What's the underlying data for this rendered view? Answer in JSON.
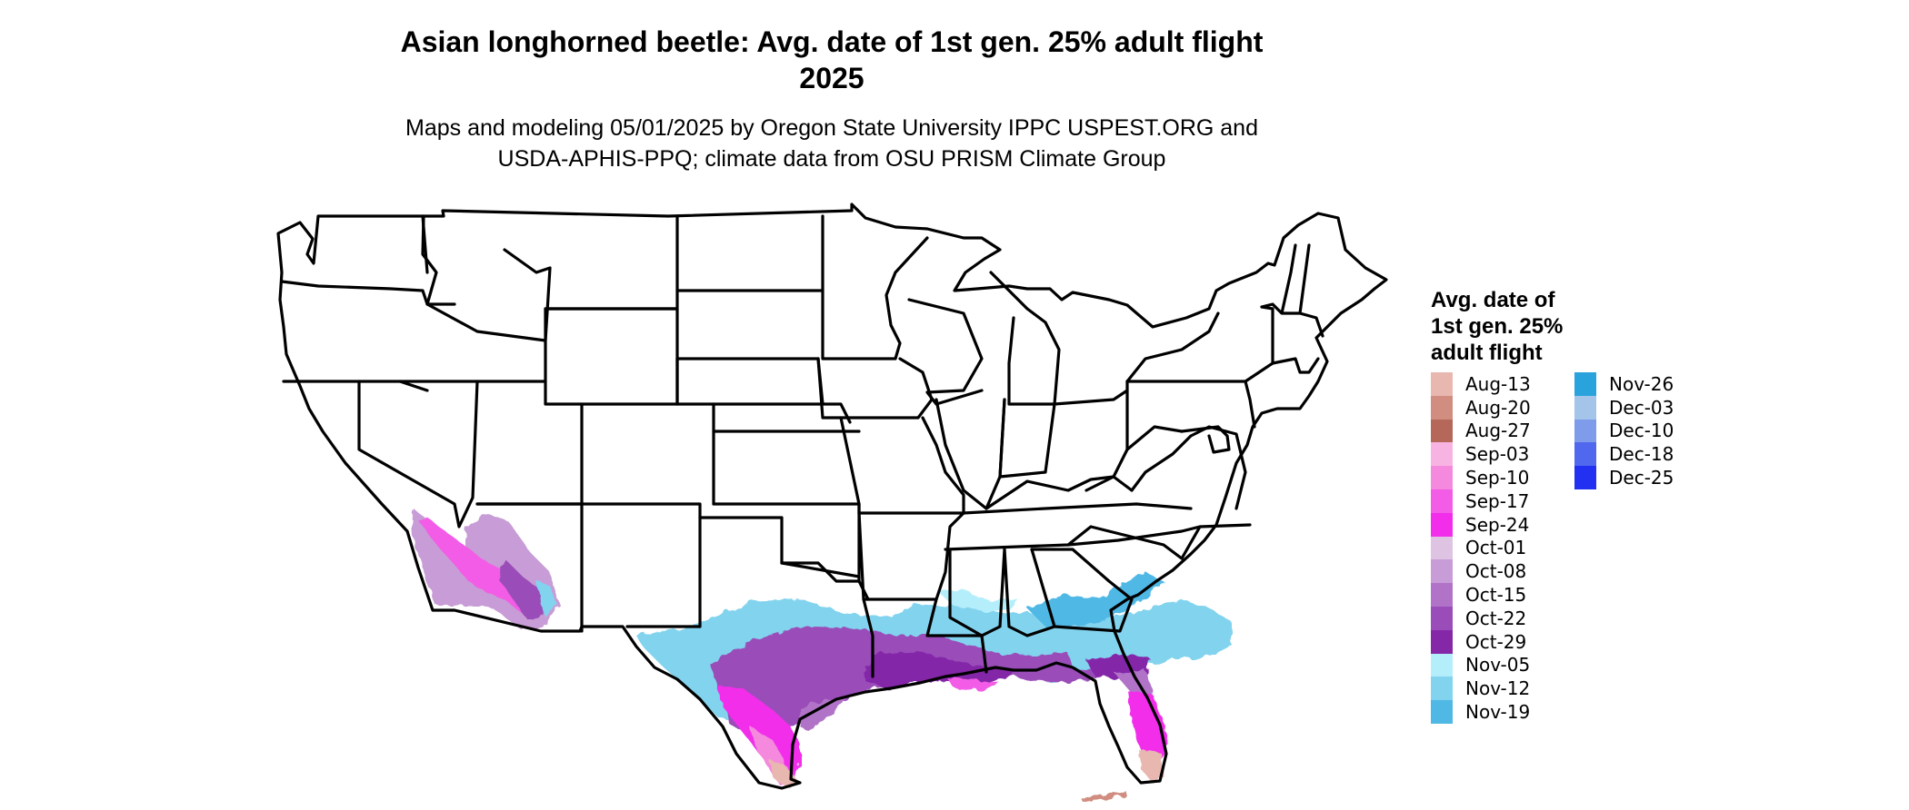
{
  "title": "Asian longhorned beetle: Avg. date of 1st gen. 25% adult flight\n2025",
  "title_line1": "Asian longhorned beetle: Avg. date of 1st gen. 25% adult flight",
  "title_line2": "2025",
  "subtitle_line1": "Maps and modeling 05/01/2025 by Oregon State University IPPC USPEST.ORG and",
  "subtitle_line2": "USDA-APHIS-PPQ; climate data from OSU PRISM Climate Group",
  "legend": {
    "title": "Avg. date of\n1st gen. 25%\nadult flight",
    "entries": [
      {
        "label": "Aug-13",
        "color": "#E8B8B0"
      },
      {
        "label": "Aug-20",
        "color": "#D08D80"
      },
      {
        "label": "Aug-27",
        "color": "#B5675A"
      },
      {
        "label": "Sep-03",
        "color": "#F7B3E2"
      },
      {
        "label": "Sep-10",
        "color": "#F489DD"
      },
      {
        "label": "Sep-17",
        "color": "#F35CE6"
      },
      {
        "label": "Sep-24",
        "color": "#F22EEB"
      },
      {
        "label": "Oct-01",
        "color": "#DEC3E3"
      },
      {
        "label": "Oct-08",
        "color": "#C89CD6"
      },
      {
        "label": "Oct-15",
        "color": "#B173C8"
      },
      {
        "label": "Oct-22",
        "color": "#9A4DB8"
      },
      {
        "label": "Oct-29",
        "color": "#8428A8"
      },
      {
        "label": "Nov-05",
        "color": "#B5EEFB"
      },
      {
        "label": "Nov-12",
        "color": "#82D3EE"
      },
      {
        "label": "Nov-19",
        "color": "#50B8E5"
      },
      {
        "label": "Nov-26",
        "color": "#2AA3DD"
      },
      {
        "label": "Dec-03",
        "color": "#A5C4EA"
      },
      {
        "label": "Dec-10",
        "color": "#7E9CEA"
      },
      {
        "label": "Dec-18",
        "color": "#5068EE"
      },
      {
        "label": "Dec-25",
        "color": "#2230F2"
      }
    ]
  },
  "map": {
    "region": "Contiguous United States",
    "state_outline_color": "#000000"
  }
}
